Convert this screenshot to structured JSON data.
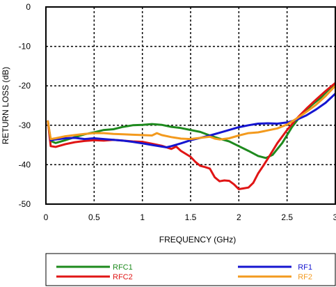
{
  "chart_data": {
    "type": "line",
    "title": "",
    "xlabel": "FREQUENCY (GHz)",
    "ylabel": "RETURN LOSS (dB)",
    "xlim": [
      0,
      3
    ],
    "ylim": [
      -50,
      0
    ],
    "x_ticks": [
      0,
      0.5,
      1,
      1.5,
      2,
      2.5,
      3
    ],
    "x_tick_labels": [
      "0",
      "0.5",
      "1",
      "1.5",
      "2",
      "2.5",
      "3"
    ],
    "y_ticks": [
      0,
      -10,
      -20,
      -30,
      -40,
      -50
    ],
    "y_tick_labels": [
      "0",
      "-10",
      "-20",
      "-30",
      "-40",
      "-50"
    ],
    "grid": true,
    "grid_style": "dashed",
    "legend_position": "bottom",
    "series": [
      {
        "name": "RFC1",
        "color": "#1e8a1e",
        "points": [
          [
            0.02,
            -29.0
          ],
          [
            0.05,
            -34.0
          ],
          [
            0.1,
            -34.5
          ],
          [
            0.2,
            -33.8
          ],
          [
            0.3,
            -33.0
          ],
          [
            0.4,
            -32.3
          ],
          [
            0.5,
            -31.8
          ],
          [
            0.6,
            -31.2
          ],
          [
            0.7,
            -31.0
          ],
          [
            0.8,
            -30.4
          ],
          [
            0.9,
            -30.0
          ],
          [
            1.0,
            -29.9
          ],
          [
            1.1,
            -29.7
          ],
          [
            1.2,
            -29.9
          ],
          [
            1.3,
            -30.4
          ],
          [
            1.4,
            -30.7
          ],
          [
            1.5,
            -31.2
          ],
          [
            1.6,
            -31.7
          ],
          [
            1.7,
            -32.6
          ],
          [
            1.8,
            -33.4
          ],
          [
            1.9,
            -34.1
          ],
          [
            2.0,
            -35.3
          ],
          [
            2.1,
            -36.5
          ],
          [
            2.2,
            -37.8
          ],
          [
            2.28,
            -38.3
          ],
          [
            2.35,
            -37.5
          ],
          [
            2.45,
            -34.5
          ],
          [
            2.55,
            -30.5
          ],
          [
            2.65,
            -27.3
          ],
          [
            2.75,
            -25.0
          ],
          [
            2.85,
            -23.0
          ],
          [
            2.95,
            -20.5
          ],
          [
            3.0,
            -19.5
          ]
        ]
      },
      {
        "name": "RFC2",
        "color": "#e01515",
        "points": [
          [
            0.02,
            -29.0
          ],
          [
            0.05,
            -35.3
          ],
          [
            0.1,
            -35.5
          ],
          [
            0.2,
            -34.8
          ],
          [
            0.3,
            -34.3
          ],
          [
            0.4,
            -34.0
          ],
          [
            0.5,
            -33.8
          ],
          [
            0.6,
            -33.9
          ],
          [
            0.7,
            -33.7
          ],
          [
            0.8,
            -33.9
          ],
          [
            0.9,
            -34.1
          ],
          [
            1.0,
            -34.2
          ],
          [
            1.1,
            -34.7
          ],
          [
            1.2,
            -35.2
          ],
          [
            1.3,
            -36.0
          ],
          [
            1.35,
            -35.4
          ],
          [
            1.4,
            -36.5
          ],
          [
            1.5,
            -38.0
          ],
          [
            1.55,
            -39.3
          ],
          [
            1.6,
            -40.3
          ],
          [
            1.65,
            -40.6
          ],
          [
            1.7,
            -41.0
          ],
          [
            1.75,
            -43.2
          ],
          [
            1.8,
            -44.2
          ],
          [
            1.85,
            -44.0
          ],
          [
            1.9,
            -44.1
          ],
          [
            1.95,
            -45.0
          ],
          [
            2.0,
            -46.2
          ],
          [
            2.05,
            -46.0
          ],
          [
            2.1,
            -45.8
          ],
          [
            2.15,
            -44.6
          ],
          [
            2.2,
            -42.2
          ],
          [
            2.25,
            -40.4
          ],
          [
            2.3,
            -38.5
          ],
          [
            2.35,
            -36.5
          ],
          [
            2.4,
            -34.5
          ],
          [
            2.5,
            -31.2
          ],
          [
            2.6,
            -28.3
          ],
          [
            2.7,
            -25.8
          ],
          [
            2.8,
            -23.5
          ],
          [
            2.9,
            -21.3
          ],
          [
            3.0,
            -19.3
          ]
        ]
      },
      {
        "name": "RF1",
        "color": "#1515d0",
        "points": [
          [
            0.02,
            -29.0
          ],
          [
            0.05,
            -33.8
          ],
          [
            0.1,
            -33.6
          ],
          [
            0.2,
            -33.3
          ],
          [
            0.3,
            -33.2
          ],
          [
            0.4,
            -33.5
          ],
          [
            0.5,
            -33.3
          ],
          [
            0.6,
            -33.5
          ],
          [
            0.7,
            -33.7
          ],
          [
            0.8,
            -33.9
          ],
          [
            0.9,
            -34.2
          ],
          [
            1.0,
            -34.6
          ],
          [
            1.1,
            -35.0
          ],
          [
            1.2,
            -35.4
          ],
          [
            1.25,
            -35.6
          ],
          [
            1.3,
            -35.3
          ],
          [
            1.4,
            -34.6
          ],
          [
            1.5,
            -33.8
          ],
          [
            1.6,
            -33.2
          ],
          [
            1.7,
            -32.6
          ],
          [
            1.8,
            -31.9
          ],
          [
            1.9,
            -31.2
          ],
          [
            2.0,
            -30.5
          ],
          [
            2.1,
            -30.0
          ],
          [
            2.2,
            -29.6
          ],
          [
            2.3,
            -29.5
          ],
          [
            2.4,
            -29.6
          ],
          [
            2.5,
            -29.3
          ],
          [
            2.6,
            -28.6
          ],
          [
            2.7,
            -27.5
          ],
          [
            2.8,
            -26.0
          ],
          [
            2.9,
            -24.3
          ],
          [
            3.0,
            -22.0
          ]
        ]
      },
      {
        "name": "RF2",
        "color": "#f39a1e",
        "points": [
          [
            0.02,
            -29.0
          ],
          [
            0.05,
            -33.5
          ],
          [
            0.1,
            -33.3
          ],
          [
            0.2,
            -32.8
          ],
          [
            0.3,
            -32.5
          ],
          [
            0.4,
            -32.2
          ],
          [
            0.5,
            -32.0
          ],
          [
            0.6,
            -32.0
          ],
          [
            0.7,
            -32.2
          ],
          [
            0.8,
            -32.3
          ],
          [
            0.9,
            -32.4
          ],
          [
            1.0,
            -32.5
          ],
          [
            1.1,
            -32.6
          ],
          [
            1.15,
            -32.0
          ],
          [
            1.2,
            -32.5
          ],
          [
            1.3,
            -33.0
          ],
          [
            1.4,
            -33.4
          ],
          [
            1.5,
            -33.5
          ],
          [
            1.6,
            -33.2
          ],
          [
            1.7,
            -32.9
          ],
          [
            1.75,
            -33.4
          ],
          [
            1.8,
            -33.6
          ],
          [
            1.9,
            -33.3
          ],
          [
            2.0,
            -32.6
          ],
          [
            2.1,
            -32.0
          ],
          [
            2.2,
            -31.8
          ],
          [
            2.3,
            -31.3
          ],
          [
            2.4,
            -30.8
          ],
          [
            2.5,
            -29.8
          ],
          [
            2.6,
            -28.3
          ],
          [
            2.7,
            -26.6
          ],
          [
            2.8,
            -24.8
          ],
          [
            2.9,
            -22.6
          ],
          [
            3.0,
            -20.0
          ]
        ]
      }
    ]
  }
}
